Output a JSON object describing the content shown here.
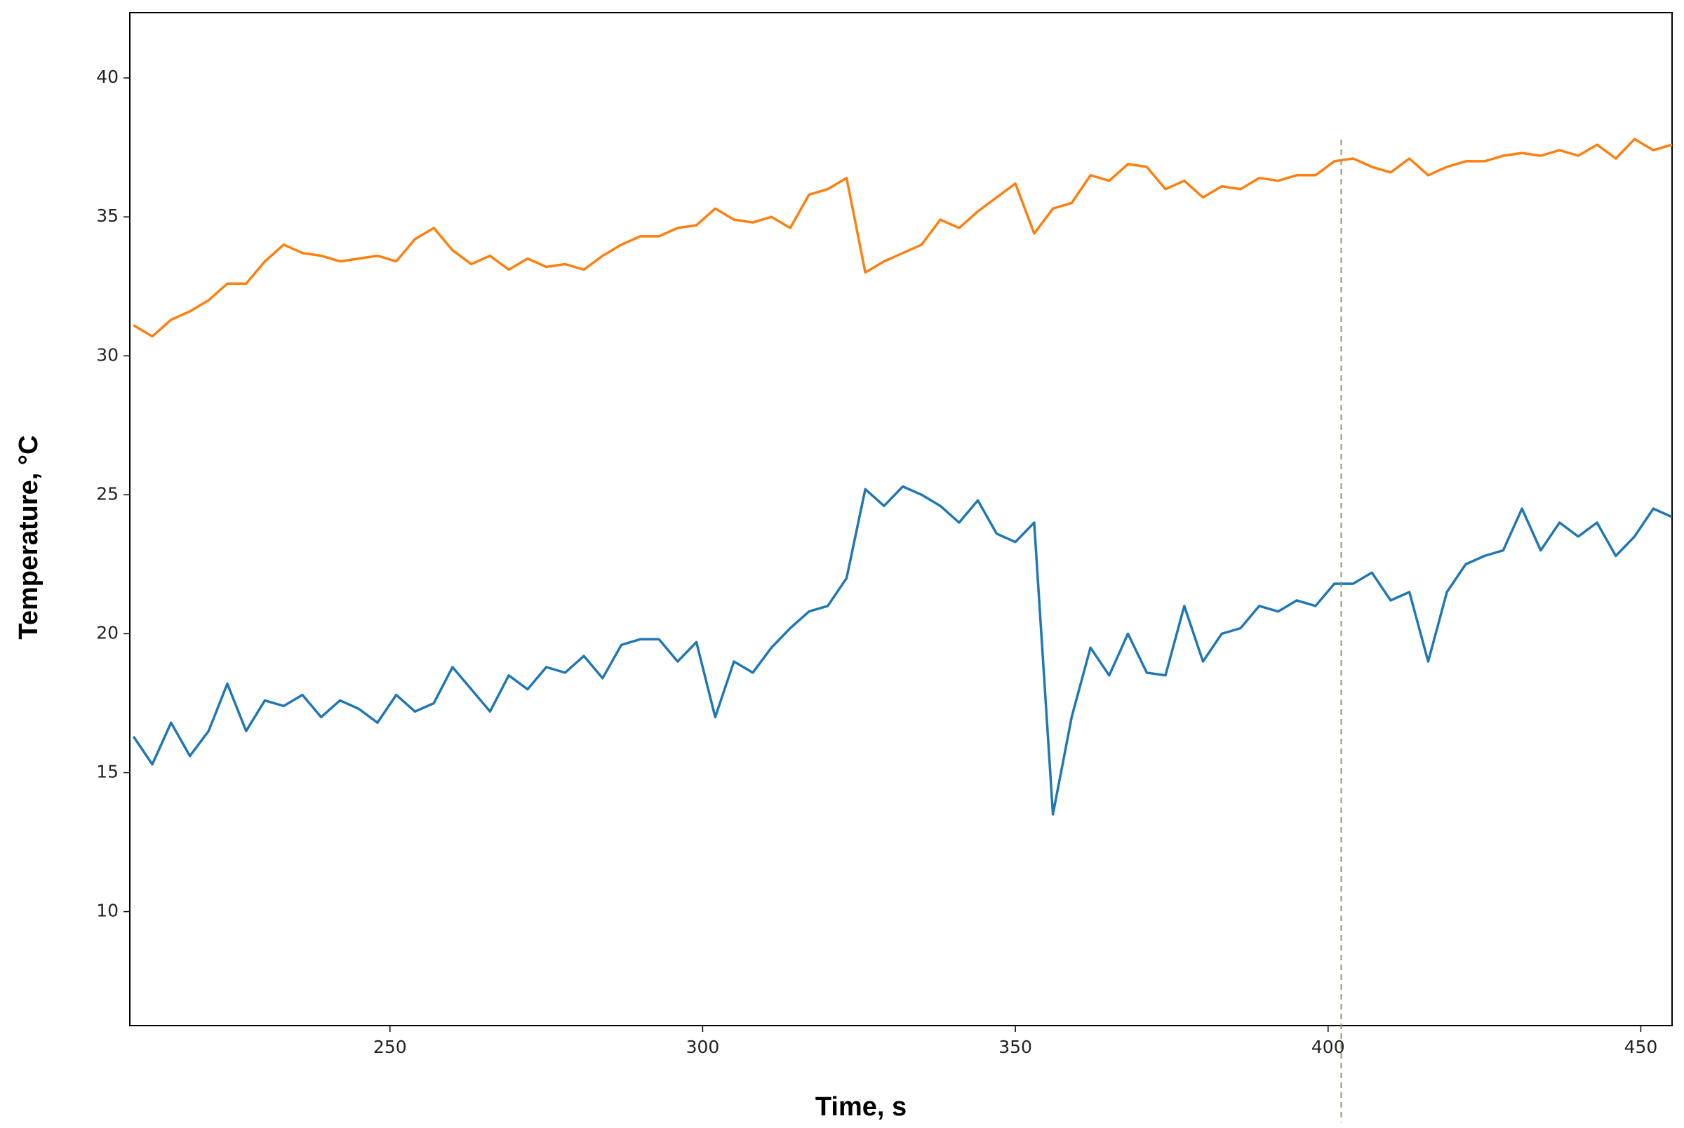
{
  "chart_data": {
    "type": "line",
    "x_label": "Time, s",
    "y_label": "Temperature, °C",
    "xlim": [
      208.4,
      455
    ],
    "ylim": [
      5.9,
      42.35
    ],
    "xticks": [
      250,
      300,
      350,
      400,
      450
    ],
    "yticks": [
      10,
      15,
      20,
      25,
      30,
      35,
      40
    ],
    "vline": 402.1,
    "vline_color": "#8f9a72",
    "x": [
      209,
      212,
      215,
      218,
      221,
      224,
      227,
      230,
      233,
      236,
      239,
      242,
      245,
      248,
      251,
      254,
      257,
      260,
      263,
      266,
      269,
      272,
      275,
      278,
      281,
      284,
      287,
      290,
      293,
      296,
      299,
      302,
      305,
      308,
      311,
      314,
      317,
      320,
      323,
      326,
      329,
      332,
      335,
      338,
      341,
      344,
      347,
      350,
      353,
      356,
      359,
      362,
      365,
      368,
      371,
      374,
      377,
      380,
      383,
      386,
      389,
      392,
      395,
      398,
      401,
      404,
      407,
      410,
      413,
      416,
      419,
      422,
      425,
      428,
      431,
      434,
      437,
      440,
      443,
      446,
      449,
      452,
      455
    ],
    "series": [
      {
        "color": "#ff7f0e",
        "values": [
          31.1,
          30.7,
          31.3,
          31.6,
          32.0,
          32.6,
          32.6,
          33.4,
          34.0,
          33.7,
          33.6,
          33.4,
          33.5,
          33.6,
          33.4,
          34.2,
          34.6,
          33.8,
          33.3,
          33.6,
          33.1,
          33.5,
          33.2,
          33.3,
          33.1,
          33.6,
          34.0,
          34.3,
          34.3,
          34.6,
          34.7,
          35.3,
          34.9,
          34.8,
          35.0,
          34.6,
          35.8,
          36.0,
          36.4,
          33.0,
          33.4,
          33.7,
          34.0,
          34.9,
          34.6,
          35.2,
          35.7,
          36.2,
          34.4,
          35.3,
          35.5,
          36.5,
          36.3,
          36.9,
          36.8,
          36.0,
          36.3,
          35.7,
          36.1,
          36.0,
          36.4,
          36.3,
          36.5,
          36.5,
          37.0,
          37.1,
          36.8,
          36.6,
          37.1,
          36.5,
          36.8,
          37.0,
          37.0,
          37.2,
          37.3,
          37.2,
          37.4,
          37.2,
          37.6,
          37.1,
          37.8,
          37.4,
          37.6
        ]
      },
      {
        "color": "#1f77b4",
        "values": [
          16.3,
          15.3,
          16.8,
          15.6,
          16.5,
          18.2,
          16.5,
          17.6,
          17.4,
          17.8,
          17.0,
          17.6,
          17.3,
          16.8,
          17.8,
          17.2,
          17.5,
          18.8,
          18.0,
          17.2,
          18.5,
          18.0,
          18.8,
          18.6,
          19.2,
          18.4,
          19.6,
          19.8,
          19.8,
          19.0,
          19.7,
          17.0,
          19.0,
          18.6,
          19.5,
          20.2,
          20.8,
          21.0,
          22.0,
          25.2,
          24.6,
          25.3,
          25.0,
          24.6,
          24.0,
          24.8,
          23.6,
          23.3,
          24.0,
          13.5,
          17.0,
          19.5,
          18.5,
          20.0,
          18.6,
          18.5,
          21.0,
          19.0,
          20.0,
          20.2,
          21.0,
          20.8,
          21.2,
          21.0,
          21.8,
          21.8,
          22.2,
          21.2,
          21.5,
          19.0,
          21.5,
          22.5,
          22.8,
          23.0,
          24.5,
          23.0,
          24.0,
          23.5,
          24.0,
          22.8,
          23.5,
          24.5,
          24.2
        ]
      }
    ]
  }
}
